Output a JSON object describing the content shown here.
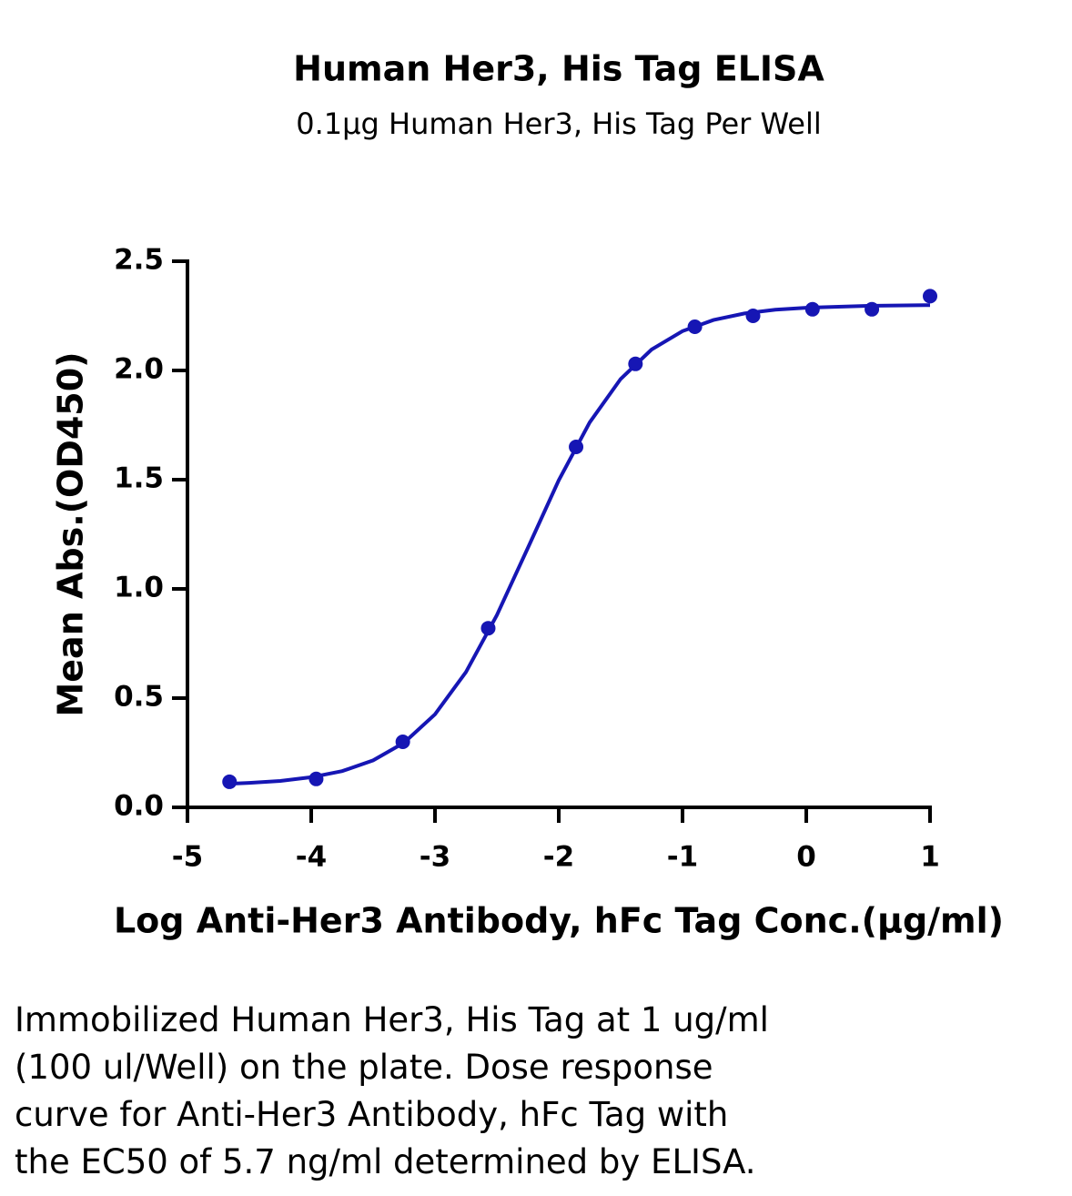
{
  "chart_data": {
    "type": "scatter",
    "title": "Human Her3, His Tag ELISA",
    "subtitle": "0.1µg Human Her3, His Tag Per Well",
    "x_label": "Log Anti-Her3 Antibody, hFc Tag Conc.(µg/ml)",
    "y_label": "Mean Abs.(OD450)",
    "color": "#1616b4",
    "x": [
      -4.66,
      -3.96,
      -3.26,
      -2.57,
      -1.86,
      -1.38,
      -0.9,
      -0.43,
      0.05,
      0.53,
      1.0
    ],
    "values": [
      0.117,
      0.13,
      0.3,
      0.82,
      1.65,
      2.03,
      2.2,
      2.25,
      2.28,
      2.28,
      2.34
    ],
    "curve": {
      "x": [
        -4.66,
        -4.5,
        -4.25,
        -4,
        -3.75,
        -3.5,
        -3.25,
        -3,
        -2.75,
        -2.5,
        -2.25,
        -2,
        -1.75,
        -1.5,
        -1.25,
        -1,
        -0.75,
        -0.5,
        -0.25,
        0,
        0.5,
        1
      ],
      "values": [
        0.108,
        0.112,
        0.121,
        0.138,
        0.166,
        0.215,
        0.296,
        0.426,
        0.619,
        0.88,
        1.187,
        1.497,
        1.762,
        1.961,
        2.096,
        2.18,
        2.231,
        2.261,
        2.278,
        2.287,
        2.296,
        2.299
      ]
    },
    "xlim": [
      -5,
      1
    ],
    "xticks": [
      -5,
      -4,
      -3,
      -2,
      -1,
      0,
      1
    ],
    "ylim": [
      0,
      2.5
    ],
    "yticks": [
      {
        "value": 0,
        "label": "0.0"
      },
      0.5,
      {
        "value": 1,
        "label": "1.0"
      },
      1.5,
      {
        "value": 2,
        "label": "2.0"
      },
      2.5
    ]
  },
  "caption": [
    "Immobilized Human Her3, His Tag at 1 ug/ml",
    "(100 ul/Well) on the plate. Dose response",
    "curve for Anti-Her3 Antibody, hFc Tag with",
    "the EC50 of 5.7 ng/ml determined by ELISA."
  ]
}
